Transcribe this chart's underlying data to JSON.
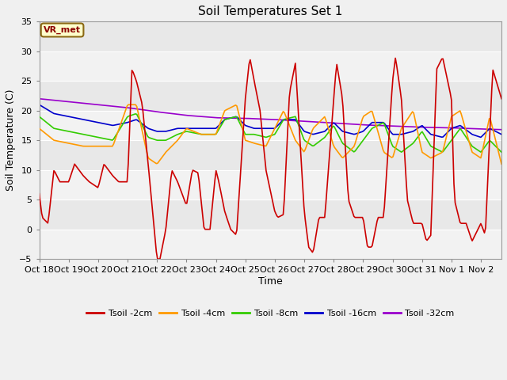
{
  "title": "Soil Temperatures Set 1",
  "xlabel": "Time",
  "ylabel": "Soil Temperature (C)",
  "ylim": [
    -5,
    35
  ],
  "fig_facecolor": "#f0f0f0",
  "plot_facecolor": "#e8e8e8",
  "annotation_text": "VR_met",
  "annotation_box_facecolor": "#ffffcc",
  "annotation_box_edgecolor": "#8b6914",
  "xtick_labels": [
    "Oct 18",
    "Oct 19",
    "Oct 20",
    "Oct 21",
    "Oct 22",
    "Oct 23",
    "Oct 24",
    "Oct 25",
    "Oct 26",
    "Oct 27",
    "Oct 28",
    "Oct 29",
    "Oct 30",
    "Oct 31",
    "Nov 1",
    "Nov 2"
  ],
  "series_colors": {
    "Tsoil -2cm": "#cc0000",
    "Tsoil -4cm": "#ff9900",
    "Tsoil -8cm": "#33cc00",
    "Tsoil -16cm": "#0000cc",
    "Tsoil -32cm": "#9900cc"
  },
  "lw": 1.2,
  "end_day": 15.7,
  "num_points": 380
}
